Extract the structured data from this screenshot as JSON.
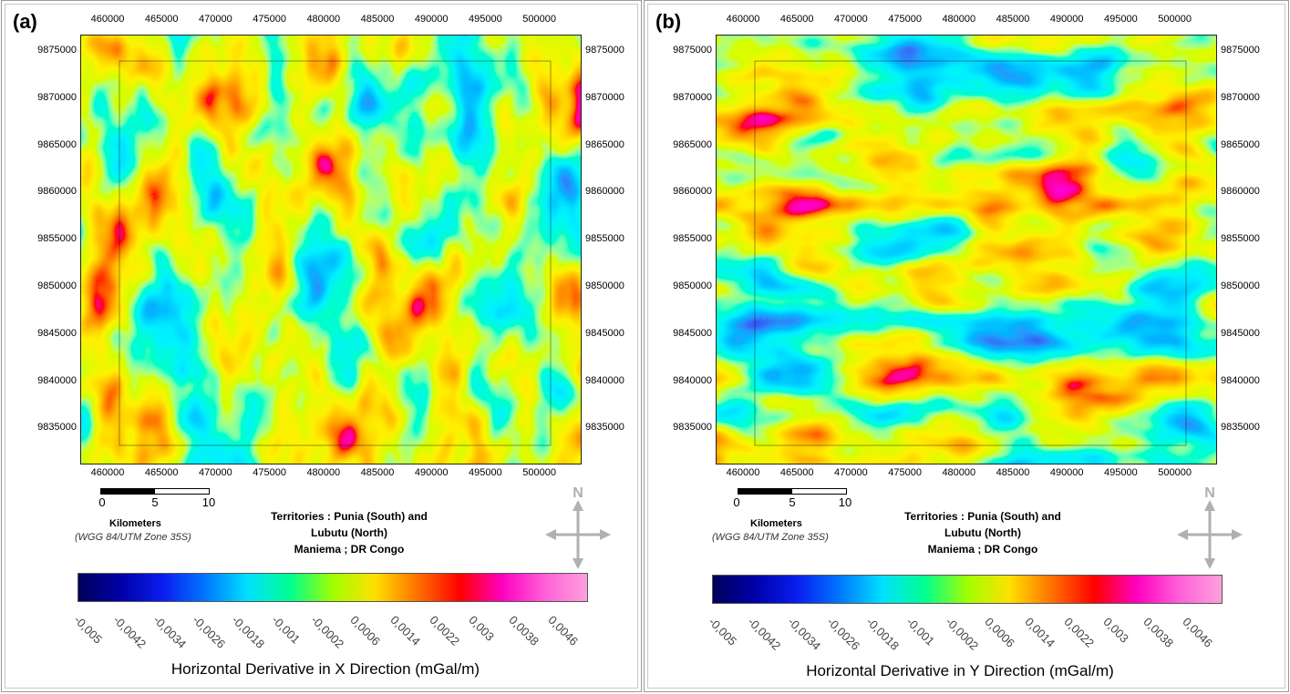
{
  "panels": [
    {
      "id": "a",
      "label": "(a)",
      "x_ticks": [
        "460000",
        "465000",
        "470000",
        "475000",
        "480000",
        "485000",
        "490000",
        "495000",
        "500000"
      ],
      "y_ticks": [
        "9875000",
        "9870000",
        "9865000",
        "9860000",
        "9855000",
        "9850000",
        "9845000",
        "9840000",
        "9835000"
      ],
      "scale": {
        "values": [
          "0",
          "5",
          "10"
        ],
        "unit": "Kilometers",
        "projection": "(WGG 84/UTM Zone 35S)"
      },
      "territory": {
        "line1": "Territories : Punia (South) and",
        "line2": "Lubutu (North)",
        "line3": "Maniema ; DR Congo"
      },
      "north_label": "N",
      "colorbar": {
        "ticks": [
          "-0,005",
          "-0,0042",
          "-0,0034",
          "-0,0026",
          "-0,0018",
          "-0,001",
          "-0,0002",
          "0,0006",
          "0,0014",
          "0,0022",
          "0,003",
          "0,0038",
          "0,0046"
        ],
        "title": "Horizontal Derivative in X Direction (mGal/m)"
      }
    },
    {
      "id": "b",
      "label": "(b)",
      "x_ticks": [
        "460000",
        "465000",
        "470000",
        "475000",
        "480000",
        "485000",
        "490000",
        "495000",
        "500000"
      ],
      "y_ticks": [
        "9875000",
        "9870000",
        "9865000",
        "9860000",
        "9855000",
        "9850000",
        "9845000",
        "9840000",
        "9835000"
      ],
      "scale": {
        "values": [
          "0",
          "5",
          "10"
        ],
        "unit": "Kilometers",
        "projection": "(WGG 84/UTM Zone 35S)"
      },
      "territory": {
        "line1": "Territories : Punia (South) and",
        "line2": "Lubutu (North)",
        "line3": "Maniema ; DR Congo"
      },
      "north_label": "N",
      "colorbar": {
        "ticks": [
          "-0,005",
          "-0,0042",
          "-0,0034",
          "-0,0026",
          "-0,0018",
          "-0,001",
          "-0,0002",
          "0,0006",
          "0,0014",
          "0,0022",
          "0,003",
          "0,0038",
          "0,0046"
        ],
        "title": "Horizontal Derivative in Y Direction (mGal/m)"
      }
    }
  ],
  "colors": {
    "ramp": [
      "#00005a",
      "#0000a8",
      "#0a1ef0",
      "#0078ff",
      "#00e0ff",
      "#00ff90",
      "#a0ff00",
      "#ffe000",
      "#ff7000",
      "#ff0000",
      "#ff00c0",
      "#ff60d8",
      "#ffa0dc"
    ],
    "low": "#00004a",
    "high": "#ff9ed6"
  }
}
